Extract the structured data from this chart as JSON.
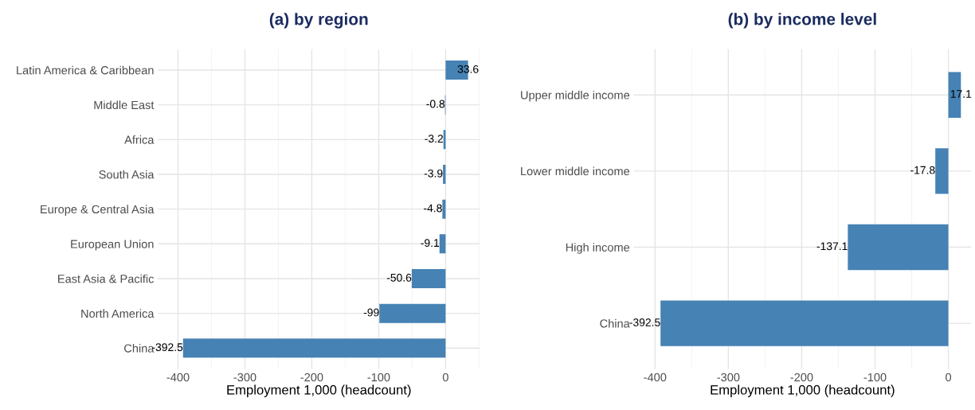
{
  "chart_data": [
    {
      "type": "bar",
      "orientation": "horizontal",
      "title": "(a) by region",
      "xlabel": "Employment 1,000 (headcount)",
      "categories": [
        "Latin America & Caribbean",
        "Middle East",
        "Africa",
        "South Asia",
        "Europe & Central Asia",
        "European Union",
        "East Asia & Pacific",
        "North America",
        "China"
      ],
      "values": [
        33.6,
        -0.8,
        -3.2,
        -3.9,
        -4.8,
        -9.1,
        -50.6,
        -99,
        -392.5
      ],
      "color": "#4682b4",
      "xlim": [
        -430,
        51
      ],
      "xticks": [
        -400,
        -300,
        -200,
        -100,
        0
      ],
      "grid": true,
      "data_labels": true
    },
    {
      "type": "bar",
      "orientation": "horizontal",
      "title": "(b) by income level",
      "xlabel": "Employment 1,000 (headcount)",
      "categories": [
        "Upper middle income",
        "Lower middle income",
        "High income",
        "China"
      ],
      "values": [
        17.1,
        -17.8,
        -137.1,
        -392.5
      ],
      "color": "#4682b4",
      "xlim": [
        -429,
        31
      ],
      "xticks": [
        -400,
        -300,
        -200,
        -100,
        0
      ],
      "grid": true,
      "data_labels": true
    }
  ]
}
